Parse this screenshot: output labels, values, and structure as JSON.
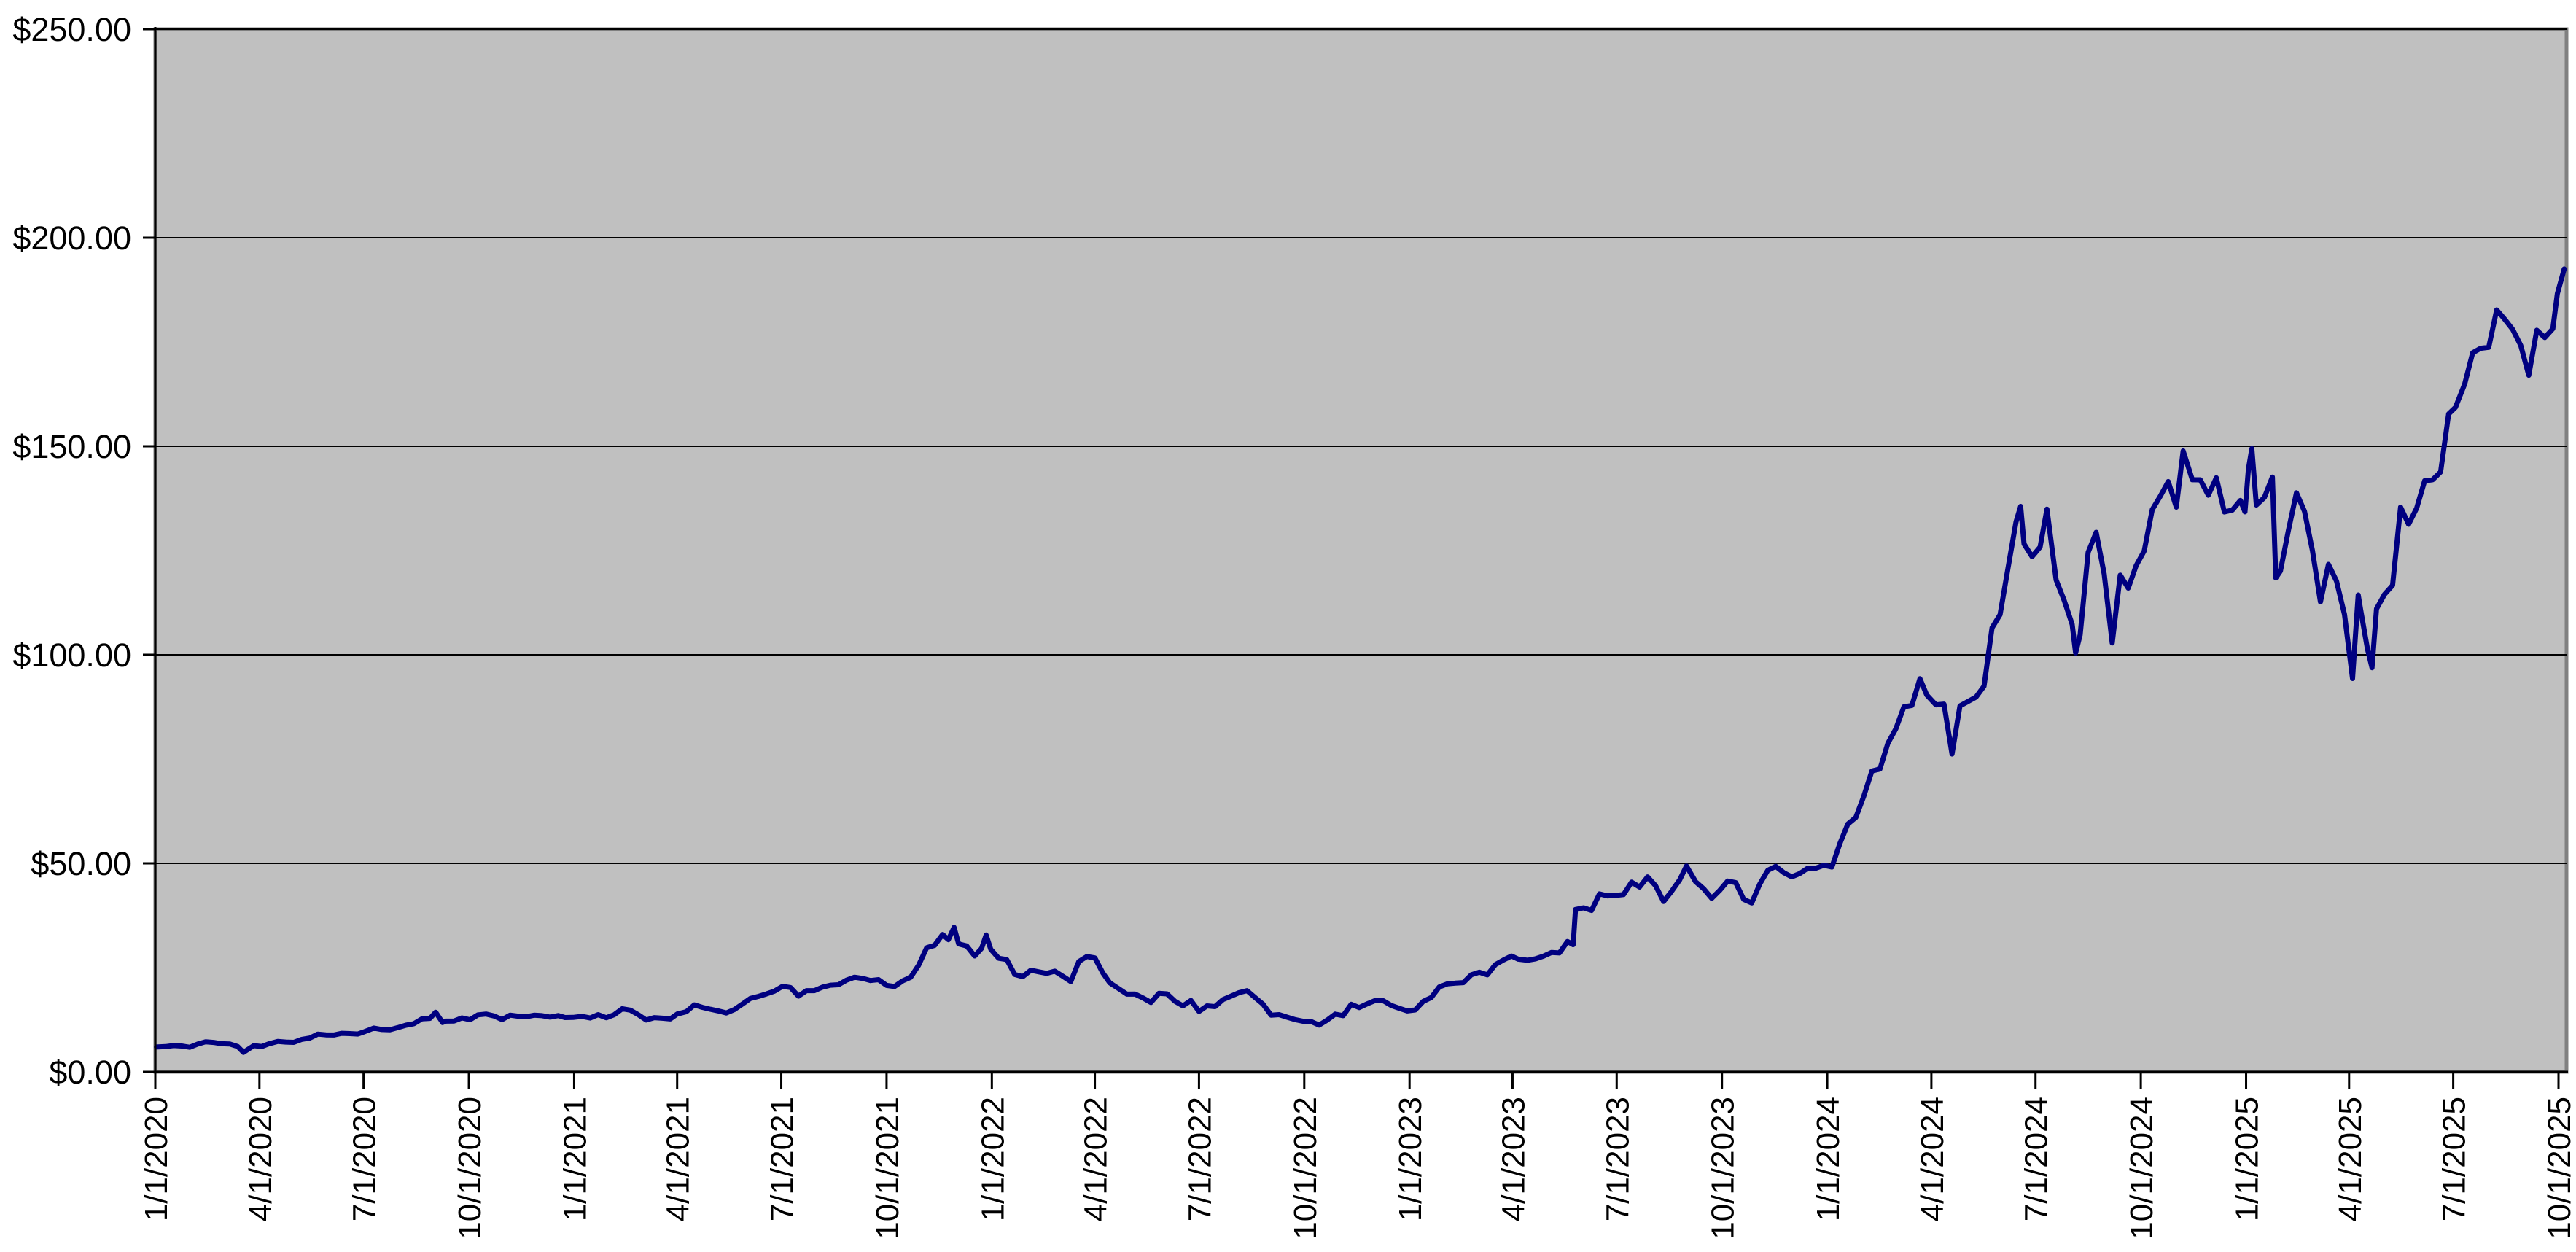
{
  "chart_data": {
    "type": "line",
    "title": "",
    "grid": true,
    "legend": false,
    "ylim": [
      0,
      250
    ],
    "y_tick_step": 50,
    "y_tick_labels": [
      "$250.00",
      "$200.00",
      "$150.00",
      "$100.00",
      "$50.00",
      "$0.00"
    ],
    "y_tick_values": [
      250,
      200,
      150,
      100,
      50,
      0
    ],
    "x_tick_labels": [
      "1/1/2020",
      "4/1/2020",
      "7/1/2020",
      "10/1/2020",
      "1/1/2021",
      "4/1/2021",
      "7/1/2021",
      "10/1/2021",
      "1/1/2022",
      "4/1/2022",
      "7/1/2022",
      "10/1/2022",
      "1/1/2023",
      "4/1/2023",
      "7/1/2023",
      "10/1/2023",
      "1/1/2024",
      "4/1/2024",
      "7/1/2024",
      "10/1/2024",
      "1/1/2025",
      "4/1/2025",
      "7/1/2025",
      "10/1/2025"
    ],
    "colors": {
      "line": "#000080",
      "plot_background": "#c0c0c0",
      "plot_border": "#808080",
      "gridline": "#000000",
      "axis": "#000000",
      "label": "#000000",
      "page_background": "#ffffff"
    },
    "points": [
      [
        "1/2/2020",
        5.97
      ],
      [
        "1/10/2020",
        6.06
      ],
      [
        "1/17/2020",
        6.31
      ],
      [
        "1/24/2020",
        6.2
      ],
      [
        "1/31/2020",
        5.91
      ],
      [
        "2/7/2020",
        6.66
      ],
      [
        "2/14/2020",
        7.22
      ],
      [
        "2/21/2020",
        7.06
      ],
      [
        "2/28/2020",
        6.75
      ],
      [
        "3/6/2020",
        6.69
      ],
      [
        "3/13/2020",
        6.09
      ],
      [
        "3/18/2020",
        4.68
      ],
      [
        "3/27/2020",
        6.29
      ],
      [
        "4/3/2020",
        6.08
      ],
      [
        "4/9/2020",
        6.71
      ],
      [
        "4/17/2020",
        7.31
      ],
      [
        "4/24/2020",
        7.15
      ],
      [
        "5/1/2020",
        7.08
      ],
      [
        "5/8/2020",
        7.8
      ],
      [
        "5/15/2020",
        8.12
      ],
      [
        "5/22/2020",
        9.05
      ],
      [
        "5/29/2020",
        8.88
      ],
      [
        "6/5/2020",
        8.85
      ],
      [
        "6/12/2020",
        9.25
      ],
      [
        "6/19/2020",
        9.17
      ],
      [
        "6/26/2020",
        9.07
      ],
      [
        "7/2/2020",
        9.65
      ],
      [
        "7/10/2020",
        10.5
      ],
      [
        "7/17/2020",
        10.15
      ],
      [
        "7/24/2020",
        10.1
      ],
      [
        "7/31/2020",
        10.61
      ],
      [
        "8/7/2020",
        11.19
      ],
      [
        "8/14/2020",
        11.55
      ],
      [
        "8/21/2020",
        12.71
      ],
      [
        "8/28/2020",
        12.83
      ],
      [
        "9/2/2020",
        14.3
      ],
      [
        "9/8/2020",
        11.84
      ],
      [
        "9/11/2020",
        12.16
      ],
      [
        "9/18/2020",
        12.18
      ],
      [
        "9/25/2020",
        12.93
      ],
      [
        "10/2/2020",
        12.5
      ],
      [
        "10/9/2020",
        13.68
      ],
      [
        "10/16/2020",
        13.86
      ],
      [
        "10/23/2020",
        13.41
      ],
      [
        "10/30/2020",
        12.53
      ],
      [
        "11/6/2020",
        13.6
      ],
      [
        "11/13/2020",
        13.36
      ],
      [
        "11/20/2020",
        13.22
      ],
      [
        "11/27/2020",
        13.58
      ],
      [
        "12/4/2020",
        13.48
      ],
      [
        "12/11/2020",
        13.13
      ],
      [
        "12/18/2020",
        13.49
      ],
      [
        "12/24/2020",
        13.03
      ],
      [
        "12/31/2020",
        13.06
      ],
      [
        "1/8/2021",
        13.31
      ],
      [
        "1/15/2021",
        12.92
      ],
      [
        "1/22/2021",
        13.73
      ],
      [
        "1/29/2021",
        12.97
      ],
      [
        "2/5/2021",
        13.71
      ],
      [
        "2/12/2021",
        15.14
      ],
      [
        "2/19/2021",
        14.8
      ],
      [
        "2/26/2021",
        13.72
      ],
      [
        "3/5/2021",
        12.43
      ],
      [
        "3/12/2021",
        13.0
      ],
      [
        "3/19/2021",
        12.86
      ],
      [
        "3/26/2021",
        12.7
      ],
      [
        "4/1/2021",
        13.86
      ],
      [
        "4/9/2021",
        14.42
      ],
      [
        "4/16/2021",
        16.06
      ],
      [
        "4/23/2021",
        15.47
      ],
      [
        "4/30/2021",
        15.01
      ],
      [
        "5/7/2021",
        14.61
      ],
      [
        "5/14/2021",
        14.13
      ],
      [
        "5/21/2021",
        14.95
      ],
      [
        "5/28/2021",
        16.25
      ],
      [
        "6/4/2021",
        17.6
      ],
      [
        "6/11/2021",
        18.1
      ],
      [
        "6/18/2021",
        18.69
      ],
      [
        "6/25/2021",
        19.36
      ],
      [
        "7/2/2021",
        20.5
      ],
      [
        "7/9/2021",
        20.22
      ],
      [
        "7/16/2021",
        18.16
      ],
      [
        "7/23/2021",
        19.47
      ],
      [
        "7/30/2021",
        19.48
      ],
      [
        "8/6/2021",
        20.32
      ],
      [
        "8/13/2021",
        20.79
      ],
      [
        "8/20/2021",
        20.9
      ],
      [
        "8/27/2021",
        21.99
      ],
      [
        "9/3/2021",
        22.7
      ],
      [
        "9/10/2021",
        22.41
      ],
      [
        "9/17/2021",
        21.91
      ],
      [
        "9/24/2021",
        22.12
      ],
      [
        "10/1/2021",
        20.73
      ],
      [
        "10/8/2021",
        20.48
      ],
      [
        "10/15/2021",
        21.81
      ],
      [
        "10/22/2021",
        22.68
      ],
      [
        "10/29/2021",
        25.58
      ],
      [
        "11/5/2021",
        29.75
      ],
      [
        "11/12/2021",
        30.33
      ],
      [
        "11/19/2021",
        32.93
      ],
      [
        "11/24/2021",
        31.7
      ],
      [
        "11/29/2021",
        34.65
      ],
      [
        "12/3/2021",
        30.69
      ],
      [
        "12/10/2021",
        30.19
      ],
      [
        "12/17/2021",
        27.8
      ],
      [
        "12/23/2021",
        29.6
      ],
      [
        "12/27/2021",
        32.82
      ],
      [
        "12/31/2021",
        29.41
      ],
      [
        "1/7/2022",
        27.23
      ],
      [
        "1/14/2022",
        26.94
      ],
      [
        "1/21/2022",
        23.35
      ],
      [
        "1/28/2022",
        22.84
      ],
      [
        "2/4/2022",
        24.37
      ],
      [
        "2/11/2022",
        23.99
      ],
      [
        "2/18/2022",
        23.62
      ],
      [
        "2/25/2022",
        24.14
      ],
      [
        "3/4/2022",
        22.93
      ],
      [
        "3/11/2022",
        21.66
      ],
      [
        "3/18/2022",
        26.45
      ],
      [
        "3/25/2022",
        27.65
      ],
      [
        "4/1/2022",
        27.32
      ],
      [
        "4/8/2022",
        23.71
      ],
      [
        "4/14/2022",
        21.36
      ],
      [
        "4/22/2022",
        19.93
      ],
      [
        "4/29/2022",
        18.63
      ],
      [
        "5/6/2022",
        18.68
      ],
      [
        "5/13/2022",
        17.72
      ],
      [
        "5/20/2022",
        16.64
      ],
      [
        "5/27/2022",
        18.82
      ],
      [
        "6/3/2022",
        18.7
      ],
      [
        "6/10/2022",
        16.94
      ],
      [
        "6/17/2022",
        15.82
      ],
      [
        "6/24/2022",
        17.13
      ],
      [
        "7/1/2022",
        14.5
      ],
      [
        "7/8/2022",
        15.82
      ],
      [
        "7/15/2022",
        15.65
      ],
      [
        "7/22/2022",
        17.34
      ],
      [
        "7/29/2022",
        18.16
      ],
      [
        "8/5/2022",
        18.99
      ],
      [
        "8/12/2022",
        19.48
      ],
      [
        "8/19/2022",
        17.83
      ],
      [
        "8/26/2022",
        16.23
      ],
      [
        "9/2/2022",
        13.61
      ],
      [
        "9/9/2022",
        13.72
      ],
      [
        "9/16/2022",
        13.12
      ],
      [
        "9/23/2022",
        12.54
      ],
      [
        "9/30/2022",
        12.14
      ],
      [
        "10/7/2022",
        12.08
      ],
      [
        "10/14/2022",
        11.22
      ],
      [
        "10/21/2022",
        12.41
      ],
      [
        "10/28/2022",
        13.84
      ],
      [
        "11/4/2022",
        13.48
      ],
      [
        "11/11/2022",
        16.2
      ],
      [
        "11/18/2022",
        15.42
      ],
      [
        "11/25/2022",
        16.31
      ],
      [
        "12/2/2022",
        17.11
      ],
      [
        "12/9/2022",
        17.07
      ],
      [
        "12/16/2022",
        15.93
      ],
      [
        "12/23/2022",
        15.25
      ],
      [
        "12/30/2022",
        14.61
      ],
      [
        "1/6/2023",
        14.86
      ],
      [
        "1/13/2023",
        16.9
      ],
      [
        "1/20/2023",
        17.84
      ],
      [
        "1/27/2023",
        20.37
      ],
      [
        "2/3/2023",
        21.1
      ],
      [
        "2/10/2023",
        21.28
      ],
      [
        "2/17/2023",
        21.4
      ],
      [
        "2/24/2023",
        23.28
      ],
      [
        "3/3/2023",
        23.89
      ],
      [
        "3/10/2023",
        23.27
      ],
      [
        "3/17/2023",
        25.72
      ],
      [
        "3/24/2023",
        26.81
      ],
      [
        "3/31/2023",
        27.78
      ],
      [
        "4/6/2023",
        27.03
      ],
      [
        "4/14/2023",
        26.76
      ],
      [
        "4/21/2023",
        27.1
      ],
      [
        "4/28/2023",
        27.74
      ],
      [
        "5/5/2023",
        28.62
      ],
      [
        "5/12/2023",
        28.52
      ],
      [
        "5/19/2023",
        31.26
      ],
      [
        "5/24/2023",
        30.51
      ],
      [
        "5/26/2023",
        38.93
      ],
      [
        "6/2/2023",
        39.33
      ],
      [
        "6/9/2023",
        38.71
      ],
      [
        "6/16/2023",
        42.68
      ],
      [
        "6/23/2023",
        42.21
      ],
      [
        "6/30/2023",
        42.3
      ],
      [
        "7/7/2023",
        42.51
      ],
      [
        "7/14/2023",
        45.49
      ],
      [
        "7/21/2023",
        44.31
      ],
      [
        "7/28/2023",
        46.74
      ],
      [
        "8/4/2023",
        44.65
      ],
      [
        "8/11/2023",
        40.85
      ],
      [
        "8/18/2023",
        43.28
      ],
      [
        "8/25/2023",
        46.02
      ],
      [
        "8/31/2023",
        49.35
      ],
      [
        "9/8/2023",
        45.57
      ],
      [
        "9/15/2023",
        43.9
      ],
      [
        "9/22/2023",
        41.61
      ],
      [
        "9/29/2023",
        43.5
      ],
      [
        "10/6/2023",
        45.75
      ],
      [
        "10/13/2023",
        45.39
      ],
      [
        "10/20/2023",
        41.36
      ],
      [
        "10/27/2023",
        40.5
      ],
      [
        "11/3/2023",
        45.02
      ],
      [
        "11/10/2023",
        48.33
      ],
      [
        "11/17/2023",
        49.28
      ],
      [
        "11/24/2023",
        47.77
      ],
      [
        "12/1/2023",
        46.76
      ],
      [
        "12/8/2023",
        47.55
      ],
      [
        "12/15/2023",
        48.85
      ],
      [
        "12/22/2023",
        48.83
      ],
      [
        "12/29/2023",
        49.52
      ],
      [
        "1/5/2024",
        49.1
      ],
      [
        "1/12/2024",
        54.71
      ],
      [
        "1/19/2024",
        59.42
      ],
      [
        "1/26/2024",
        61.02
      ],
      [
        "2/2/2024",
        66.16
      ],
      [
        "2/9/2024",
        72.13
      ],
      [
        "2/16/2024",
        72.61
      ],
      [
        "2/23/2024",
        78.81
      ],
      [
        "3/1/2024",
        82.28
      ],
      [
        "3/8/2024",
        87.53
      ],
      [
        "3/15/2024",
        87.87
      ],
      [
        "3/22/2024",
        94.28
      ],
      [
        "3/28/2024",
        90.36
      ],
      [
        "4/5/2024",
        88.01
      ],
      [
        "4/12/2024",
        88.19
      ],
      [
        "4/19/2024",
        76.2
      ],
      [
        "4/26/2024",
        87.74
      ],
      [
        "5/3/2024",
        88.79
      ],
      [
        "5/10/2024",
        89.87
      ],
      [
        "5/17/2024",
        92.48
      ],
      [
        "5/24/2024",
        106.47
      ],
      [
        "5/31/2024",
        109.63
      ],
      [
        "6/7/2024",
        120.89
      ],
      [
        "6/14/2024",
        131.88
      ],
      [
        "6/18/2024",
        135.58
      ],
      [
        "6/21/2024",
        126.57
      ],
      [
        "6/28/2024",
        123.54
      ],
      [
        "7/5/2024",
        125.83
      ],
      [
        "7/11/2024",
        134.91
      ],
      [
        "7/19/2024",
        117.93
      ],
      [
        "7/26/2024",
        113.06
      ],
      [
        "8/2/2024",
        107.27
      ],
      [
        "8/5/2024",
        100.45
      ],
      [
        "8/9/2024",
        104.75
      ],
      [
        "8/16/2024",
        124.58
      ],
      [
        "8/23/2024",
        129.37
      ],
      [
        "8/30/2024",
        119.37
      ],
      [
        "9/6/2024",
        102.83
      ],
      [
        "9/13/2024",
        119.1
      ],
      [
        "9/20/2024",
        116.0
      ],
      [
        "9/27/2024",
        121.4
      ],
      [
        "10/4/2024",
        124.92
      ],
      [
        "10/11/2024",
        134.8
      ],
      [
        "10/18/2024",
        138.0
      ],
      [
        "10/25/2024",
        141.54
      ],
      [
        "11/1/2024",
        135.4
      ],
      [
        "11/7/2024",
        148.88
      ],
      [
        "11/15/2024",
        141.98
      ],
      [
        "11/22/2024",
        141.95
      ],
      [
        "11/29/2024",
        138.25
      ],
      [
        "12/6/2024",
        142.44
      ],
      [
        "12/13/2024",
        134.25
      ],
      [
        "12/20/2024",
        134.7
      ],
      [
        "12/27/2024",
        137.01
      ],
      [
        "12/31/2024",
        134.29
      ],
      [
        "1/3/2025",
        144.47
      ],
      [
        "1/6/2025",
        149.43
      ],
      [
        "1/10/2025",
        135.91
      ],
      [
        "1/17/2025",
        137.71
      ],
      [
        "1/24/2025",
        142.62
      ],
      [
        "1/27/2025",
        118.42
      ],
      [
        "1/31/2025",
        120.07
      ],
      [
        "2/7/2025",
        129.84
      ],
      [
        "2/14/2025",
        138.85
      ],
      [
        "2/21/2025",
        134.43
      ],
      [
        "2/28/2025",
        124.92
      ],
      [
        "3/7/2025",
        112.69
      ],
      [
        "3/14/2025",
        121.67
      ],
      [
        "3/21/2025",
        117.7
      ],
      [
        "3/28/2025",
        109.67
      ],
      [
        "4/4/2025",
        94.31
      ],
      [
        "4/9/2025",
        114.33
      ],
      [
        "4/11/2025",
        110.93
      ],
      [
        "4/17/2025",
        101.49
      ],
      [
        "4/21/2025",
        96.91
      ],
      [
        "4/25/2025",
        111.01
      ],
      [
        "5/2/2025",
        114.5
      ],
      [
        "5/9/2025",
        116.65
      ],
      [
        "5/16/2025",
        135.4
      ],
      [
        "5/23/2025",
        131.29
      ],
      [
        "5/30/2025",
        135.13
      ],
      [
        "6/6/2025",
        141.72
      ],
      [
        "6/13/2025",
        141.97
      ],
      [
        "6/20/2025",
        143.85
      ],
      [
        "6/27/2025",
        157.75
      ],
      [
        "7/3/2025",
        159.34
      ],
      [
        "7/11/2025",
        164.92
      ],
      [
        "7/18/2025",
        172.41
      ],
      [
        "7/25/2025",
        173.5
      ],
      [
        "8/1/2025",
        173.72
      ],
      [
        "8/8/2025",
        182.7
      ],
      [
        "8/15/2025",
        180.45
      ],
      [
        "8/22/2025",
        177.99
      ],
      [
        "8/29/2025",
        174.18
      ],
      [
        "9/5/2025",
        167.02
      ],
      [
        "9/12/2025",
        177.82
      ],
      [
        "9/19/2025",
        176.06
      ],
      [
        "9/26/2025",
        178.19
      ],
      [
        "9/30/2025",
        186.58
      ],
      [
        "10/6/2025",
        192.5
      ]
    ]
  }
}
